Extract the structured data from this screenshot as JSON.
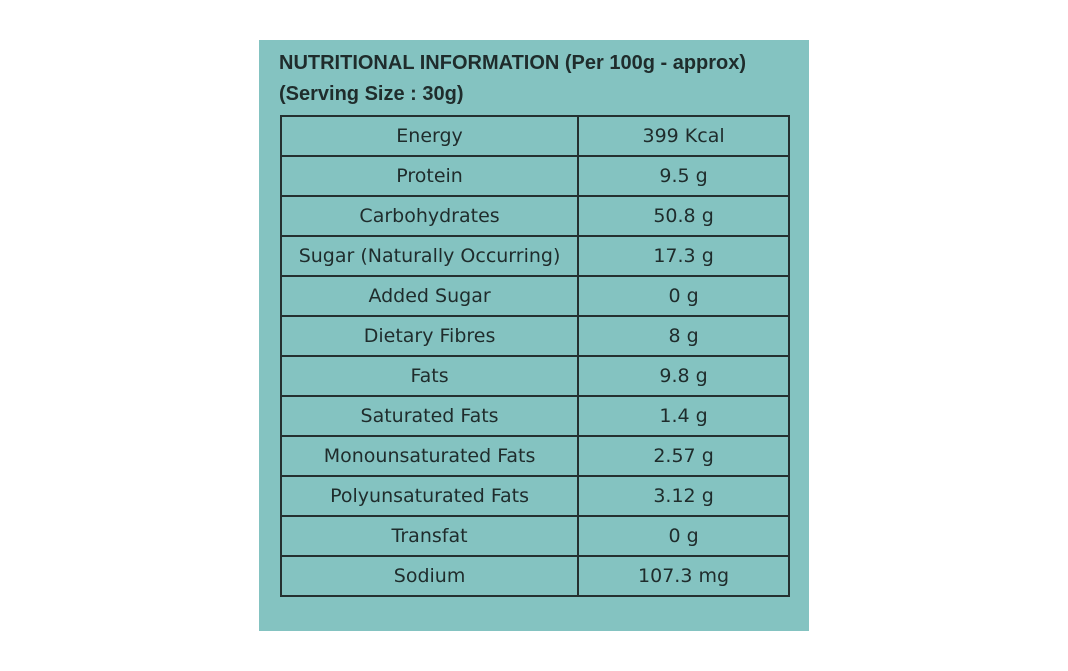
{
  "header": {
    "title_line1": "NUTRITIONAL INFORMATION (Per 100g - approx)",
    "title_line2": "(Serving Size : 30g)"
  },
  "rows": [
    {
      "name": "Energy",
      "value": "399 Kcal"
    },
    {
      "name": "Protein",
      "value": "9.5 g"
    },
    {
      "name": "Carbohydrates",
      "value": "50.8 g"
    },
    {
      "name": "Sugar (Naturally Occurring)",
      "value": "17.3 g"
    },
    {
      "name": "Added Sugar",
      "value": "0 g"
    },
    {
      "name": "Dietary Fibres",
      "value": "8 g"
    },
    {
      "name": "Fats",
      "value": "9.8 g"
    },
    {
      "name": "Saturated Fats",
      "value": "1.4 g"
    },
    {
      "name": "Monounsaturated Fats",
      "value": "2.57 g"
    },
    {
      "name": "Polyunsaturated Fats",
      "value": "3.12 g"
    },
    {
      "name": "Transfat",
      "value": "0 g"
    },
    {
      "name": "Sodium",
      "value": "107.3 mg"
    }
  ],
  "colors": {
    "panel_background": "#84c3c1",
    "text": "#1f2c2c",
    "border": "#243030"
  }
}
